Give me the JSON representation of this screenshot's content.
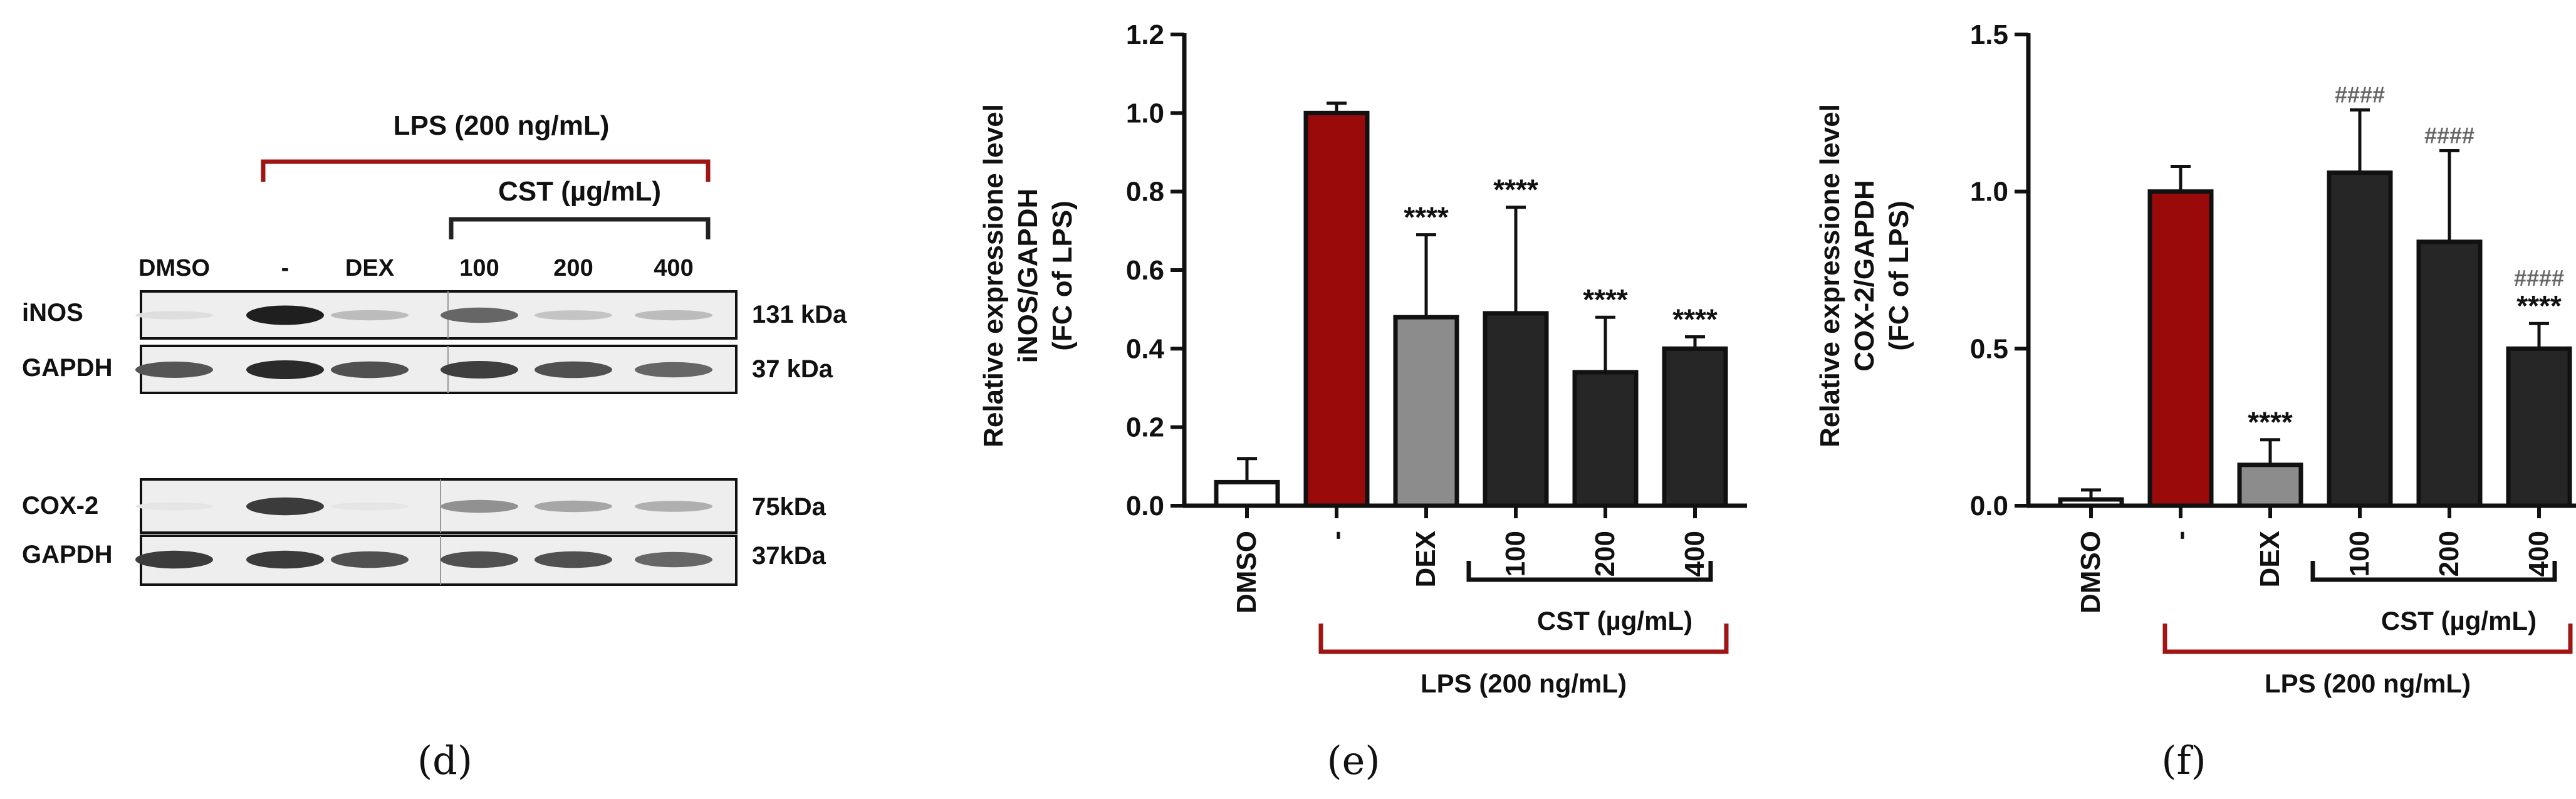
{
  "blot": {
    "lps_label": "LPS (200 ng/mL)",
    "cst_label": "CST (µg/mL)",
    "lanes": [
      "DMSO",
      "-",
      "DEX",
      "100",
      "200",
      "400"
    ],
    "rows": [
      {
        "protein": "iNOS",
        "size": "131 kDa",
        "intensities": [
          0.06,
          0.95,
          0.22,
          0.62,
          0.18,
          0.22
        ]
      },
      {
        "protein": "GAPDH",
        "size": "37 kDa",
        "intensities": [
          0.7,
          0.9,
          0.72,
          0.8,
          0.72,
          0.62
        ]
      },
      {
        "protein": "COX-2",
        "size": "75kDa",
        "intensities": [
          0.03,
          0.82,
          0.03,
          0.42,
          0.32,
          0.28
        ]
      },
      {
        "protein": "GAPDH",
        "size": "37kDa",
        "intensities": [
          0.82,
          0.82,
          0.72,
          0.72,
          0.72,
          0.62
        ]
      }
    ],
    "panel_label": "(d)"
  },
  "chart_data": [
    {
      "type": "bar",
      "panel_label": "(e)",
      "ylabel_lines": [
        "Relative expressione level",
        "iNOS/GAPDH",
        "(FC of LPS)"
      ],
      "categories": [
        "DMSO",
        "-",
        "DEX",
        "100",
        "200",
        "400"
      ],
      "values": [
        0.06,
        1.0,
        0.48,
        0.49,
        0.34,
        0.4
      ],
      "errors": [
        0.06,
        0.025,
        0.21,
        0.27,
        0.14,
        0.03
      ],
      "colors": [
        "#ffffff",
        "#9b0a0a",
        "#8c8c8c",
        "#262626",
        "#262626",
        "#262626"
      ],
      "ylim": [
        0,
        1.2
      ],
      "yticks": [
        "0.0",
        "0.2",
        "0.4",
        "0.6",
        "0.8",
        "1.0",
        "1.2"
      ],
      "annotations": [
        {
          "bar": 2,
          "lines": [
            "****"
          ]
        },
        {
          "bar": 3,
          "lines": [
            "****"
          ]
        },
        {
          "bar": 4,
          "lines": [
            "****"
          ]
        },
        {
          "bar": 5,
          "lines": [
            "****"
          ]
        }
      ],
      "cst_label": "CST (µg/mL)",
      "lps_label": "LPS (200 ng/mL)"
    },
    {
      "type": "bar",
      "panel_label": "(f)",
      "ylabel_lines": [
        "Relative expressione level",
        "COX-2/GAPDH",
        "(FC of LPS)"
      ],
      "categories": [
        "DMSO",
        "-",
        "DEX",
        "100",
        "200",
        "400"
      ],
      "values": [
        0.02,
        1.0,
        0.13,
        1.06,
        0.84,
        0.5
      ],
      "errors": [
        0.03,
        0.08,
        0.08,
        0.2,
        0.29,
        0.08
      ],
      "colors": [
        "#ffffff",
        "#9b0a0a",
        "#8c8c8c",
        "#262626",
        "#262626",
        "#262626"
      ],
      "ylim": [
        0,
        1.5
      ],
      "yticks": [
        "0.0",
        "0.5",
        "1.0",
        "1.5"
      ],
      "annotations": [
        {
          "bar": 2,
          "lines": [
            "****"
          ]
        },
        {
          "bar": 3,
          "lines": [
            "####"
          ]
        },
        {
          "bar": 4,
          "lines": [
            "####"
          ]
        },
        {
          "bar": 5,
          "lines": [
            "####",
            "****"
          ]
        }
      ],
      "cst_label": "CST (µg/mL)",
      "lps_label": "LPS (200 ng/mL)"
    }
  ]
}
